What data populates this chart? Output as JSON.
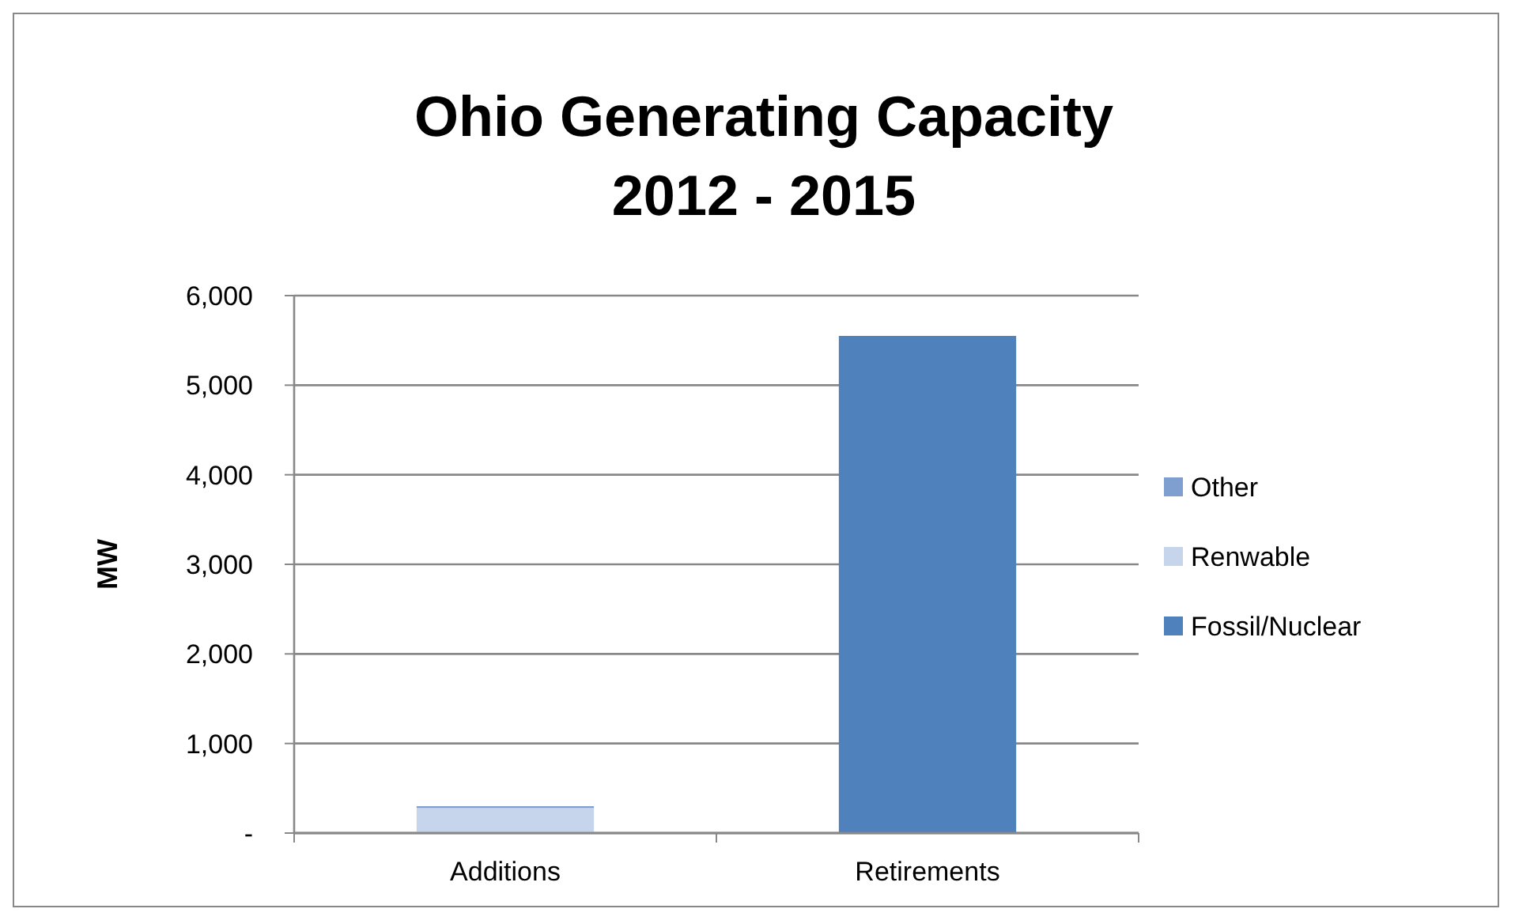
{
  "chart_data": {
    "type": "bar",
    "title": "Ohio Generating Capacity\n2012 - 2015",
    "ylabel": "MW",
    "categories": [
      "Additions",
      "Retirements"
    ],
    "stacked": true,
    "series": [
      {
        "name": "Fossil/Nuclear",
        "color": "#4f81bd",
        "values": [
          0,
          5550
        ]
      },
      {
        "name": "Renwable",
        "color": "#c6d5ec",
        "values": [
          280,
          0
        ]
      },
      {
        "name": "Other",
        "color": "#7f9fd0",
        "values": [
          20,
          0
        ]
      }
    ],
    "ylim": [
      0,
      6000
    ],
    "yticks": [
      {
        "value": 0,
        "label": "-"
      },
      {
        "value": 1000,
        "label": "1,000"
      },
      {
        "value": 2000,
        "label": "2,000"
      },
      {
        "value": 3000,
        "label": "3,000"
      },
      {
        "value": 4000,
        "label": "4,000"
      },
      {
        "value": 5000,
        "label": "5,000"
      },
      {
        "value": 6000,
        "label": "6,000"
      }
    ],
    "grid": "y",
    "legend": "right"
  }
}
